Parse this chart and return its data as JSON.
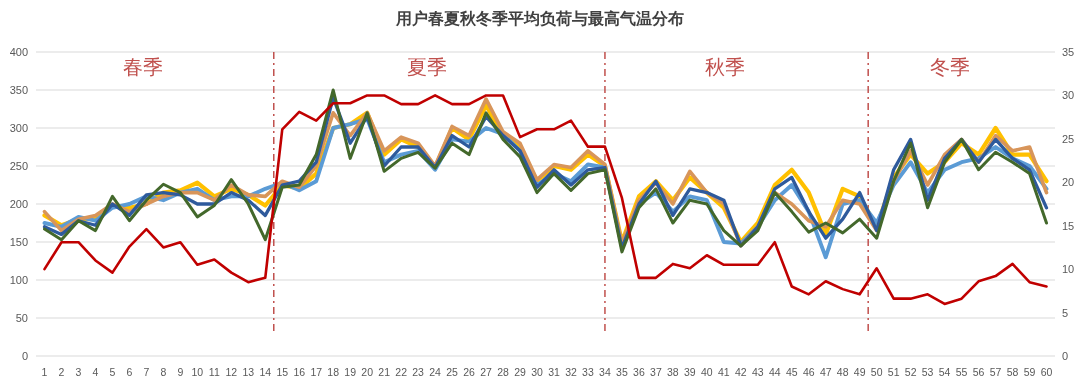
{
  "chart_data": {
    "type": "line",
    "title": "用户春夏秋冬季平均负荷与最高气温分布",
    "x": [
      1,
      2,
      3,
      4,
      5,
      6,
      7,
      8,
      9,
      10,
      11,
      12,
      13,
      14,
      15,
      16,
      17,
      18,
      19,
      20,
      21,
      22,
      23,
      24,
      25,
      26,
      27,
      28,
      29,
      30,
      31,
      32,
      33,
      34,
      35,
      36,
      37,
      38,
      39,
      40,
      41,
      42,
      43,
      44,
      45,
      46,
      47,
      48,
      49,
      50,
      51,
      52,
      53,
      54,
      55,
      56,
      57,
      58,
      59,
      60
    ],
    "xlim": [
      0.5,
      60.5
    ],
    "xticks": [
      1,
      2,
      3,
      4,
      5,
      6,
      7,
      8,
      9,
      10,
      11,
      12,
      13,
      14,
      15,
      16,
      17,
      18,
      19,
      20,
      21,
      22,
      23,
      24,
      25,
      26,
      27,
      28,
      29,
      30,
      31,
      32,
      33,
      34,
      35,
      36,
      37,
      38,
      39,
      40,
      41,
      42,
      43,
      44,
      45,
      46,
      47,
      48,
      49,
      50,
      51,
      52,
      53,
      54,
      55,
      56,
      57,
      58,
      59,
      60
    ],
    "ylim": [
      0,
      400
    ],
    "yticks": [
      0,
      50,
      100,
      150,
      200,
      250,
      300,
      350,
      400
    ],
    "y2lim": [
      0,
      35
    ],
    "y2ticks": [
      0,
      5,
      10,
      15,
      20,
      25,
      30,
      35
    ],
    "grid": "y",
    "marker": "none",
    "line_style": "solid",
    "series": [
      {
        "color": "#ffc000",
        "values": [
          185,
          172,
          180,
          180,
          198,
          195,
          200,
          215,
          218,
          228,
          210,
          220,
          212,
          198,
          225,
          220,
          240,
          300,
          305,
          320,
          265,
          285,
          275,
          248,
          300,
          285,
          330,
          290,
          275,
          230,
          250,
          245,
          265,
          250,
          150,
          210,
          230,
          205,
          235,
          215,
          195,
          150,
          175,
          225,
          245,
          215,
          160,
          220,
          210,
          170,
          235,
          265,
          240,
          255,
          280,
          265,
          300,
          265,
          265,
          230
        ]
      },
      {
        "color": "#5b9bd5",
        "values": [
          175,
          170,
          183,
          178,
          195,
          200,
          210,
          205,
          215,
          220,
          205,
          210,
          210,
          220,
          228,
          218,
          230,
          300,
          305,
          312,
          255,
          265,
          270,
          245,
          285,
          282,
          300,
          292,
          270,
          225,
          240,
          230,
          252,
          248,
          145,
          200,
          215,
          190,
          210,
          205,
          150,
          148,
          170,
          205,
          225,
          190,
          130,
          200,
          205,
          175,
          225,
          255,
          215,
          245,
          255,
          260,
          275,
          260,
          250,
          220
        ]
      },
      {
        "color": "#d8955a",
        "values": [
          190,
          165,
          180,
          185,
          200,
          190,
          200,
          210,
          215,
          215,
          205,
          225,
          212,
          210,
          230,
          222,
          250,
          320,
          290,
          320,
          270,
          288,
          280,
          250,
          302,
          290,
          338,
          295,
          280,
          232,
          252,
          248,
          270,
          252,
          148,
          205,
          228,
          200,
          243,
          215,
          200,
          145,
          170,
          215,
          200,
          178,
          170,
          205,
          200,
          165,
          230,
          270,
          225,
          265,
          285,
          255,
          290,
          270,
          275,
          215
        ]
      },
      {
        "color": "#2e5a9c",
        "values": [
          170,
          160,
          178,
          172,
          200,
          185,
          212,
          215,
          212,
          200,
          200,
          215,
          205,
          185,
          225,
          230,
          255,
          340,
          280,
          315,
          250,
          275,
          275,
          248,
          290,
          275,
          315,
          290,
          270,
          222,
          245,
          225,
          245,
          248,
          142,
          200,
          230,
          185,
          220,
          215,
          205,
          145,
          170,
          220,
          235,
          190,
          155,
          180,
          215,
          165,
          245,
          285,
          205,
          260,
          285,
          255,
          285,
          260,
          245,
          195
        ]
      },
      {
        "color": "#43682b",
        "values": [
          167,
          153,
          178,
          165,
          210,
          178,
          205,
          226,
          215,
          183,
          198,
          232,
          200,
          153,
          222,
          225,
          265,
          350,
          260,
          320,
          243,
          260,
          268,
          247,
          280,
          265,
          320,
          285,
          262,
          215,
          240,
          218,
          240,
          245,
          137,
          195,
          220,
          175,
          205,
          200,
          165,
          145,
          165,
          215,
          190,
          163,
          175,
          162,
          180,
          155,
          230,
          280,
          195,
          255,
          285,
          245,
          268,
          255,
          240,
          175
        ]
      },
      {
        "color": "#c00000",
        "axis": "y2",
        "values": [
          10.0,
          13.1,
          13.1,
          11.0,
          9.6,
          12.6,
          14.6,
          12.5,
          13.1,
          10.5,
          11.1,
          9.6,
          8.5,
          9.0,
          26.1,
          28.1,
          27.1,
          29.1,
          29.1,
          30,
          30,
          29,
          29,
          30,
          29,
          29,
          30,
          30,
          25.2,
          26.1,
          26.1,
          27.1,
          24.1,
          24.1,
          18.2,
          9.0,
          9.0,
          10.6,
          10.1,
          11.6,
          10.5,
          10.5,
          10.5,
          13.1,
          8.0,
          7.1,
          8.6,
          7.7,
          7.1,
          10.1,
          6.6,
          6.6,
          7.1,
          6.0,
          6.6,
          8.6,
          9.2,
          10.6,
          8.5,
          8.0
        ]
      }
    ],
    "ref_lines": [
      {
        "axis": "x",
        "value": 14.5,
        "color": "#c0504d",
        "line_style": "dashed"
      },
      {
        "axis": "x",
        "value": 34,
        "color": "#c0504d",
        "line_style": "dashed"
      },
      {
        "axis": "x",
        "value": 49.5,
        "color": "#c0504d",
        "line_style": "dashed"
      }
    ],
    "annotations": [
      "春季",
      "夏季",
      "秋季",
      "冬季"
    ]
  }
}
